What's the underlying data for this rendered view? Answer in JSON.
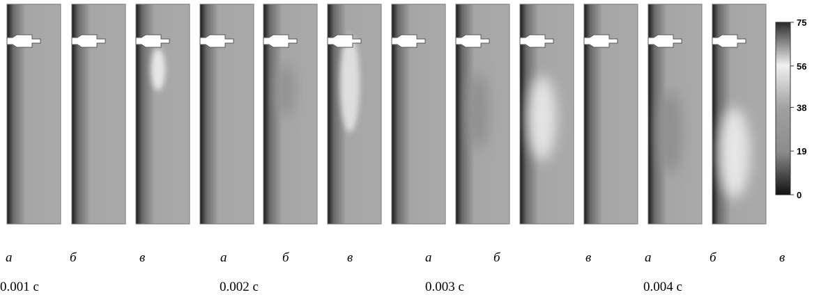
{
  "panels": [
    "а",
    "б",
    "в",
    "а",
    "б",
    "в",
    "а",
    "б",
    "в",
    "а",
    "б",
    "в"
  ],
  "times": [
    "0.001 с",
    "0.002 с",
    "0.003 с",
    "0.004 с"
  ],
  "colorbar": {
    "ticks": [
      75,
      56,
      38,
      19,
      0
    ]
  }
}
